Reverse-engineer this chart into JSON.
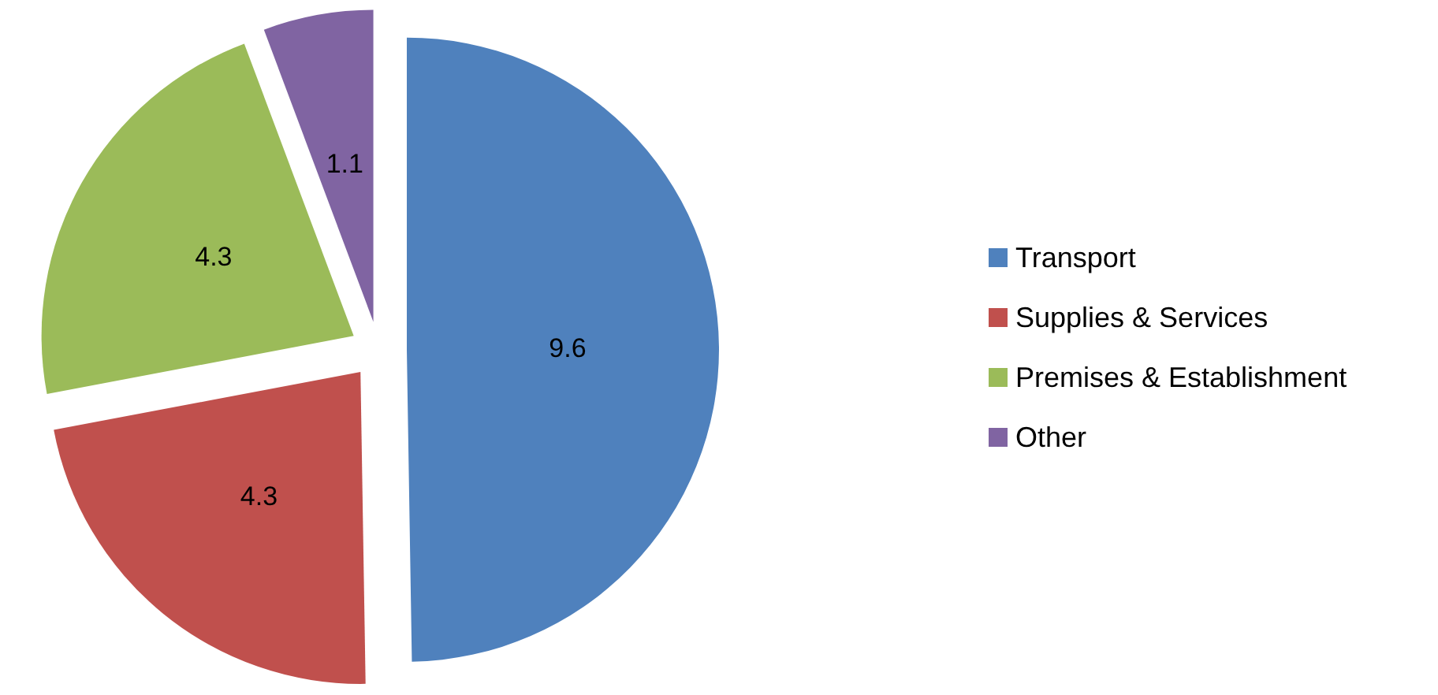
{
  "chart_data": {
    "type": "pie",
    "categories": [
      "Transport",
      "Supplies & Services",
      "Premises & Establishment",
      "Other"
    ],
    "values": [
      9.6,
      4.3,
      4.3,
      1.1
    ],
    "colors": [
      "#4f81bd",
      "#c0504d",
      "#9bbb59",
      "#8064a2"
    ],
    "data_labels": true,
    "legend": "right"
  }
}
